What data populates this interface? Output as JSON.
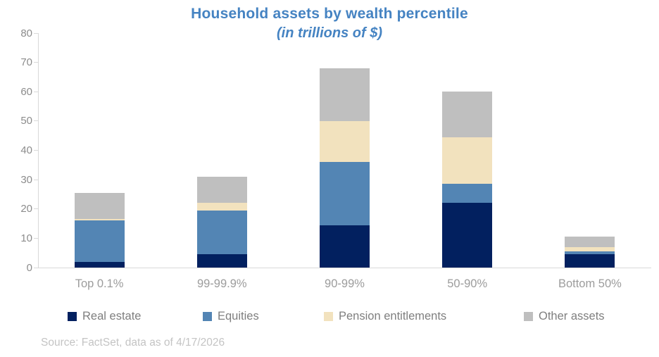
{
  "header": {
    "title": "Household assets by wealth percentile",
    "subtitle": "(in trillions of $)"
  },
  "footer": {
    "source": "Source: FactSet, data as of 4/17/2026"
  },
  "colors": {
    "title_accent": "#4583C2",
    "axis_line": "#D9D9D9",
    "real_estate": "#02205F",
    "equities": "#5385B4",
    "pension_entitlements": "#F2E2BE",
    "other_assets": "#BFBFBF"
  },
  "chart_data": {
    "type": "bar",
    "stacked": true,
    "title": "Household assets by wealth percentile",
    "subtitle": "(in trillions of $)",
    "xlabel": "",
    "ylabel": "",
    "ylim": [
      0,
      80
    ],
    "yticks": [
      0,
      10,
      20,
      30,
      40,
      50,
      60,
      70,
      80
    ],
    "grid": false,
    "legend_position": "bottom",
    "categories": [
      "Top 0.1%",
      "99-99.9%",
      "90-99%",
      "50-90%",
      "Bottom 50%"
    ],
    "series": [
      {
        "name": "Real estate",
        "color": "#02205F",
        "values": [
          2.0,
          4.5,
          14.5,
          22.0,
          4.5
        ]
      },
      {
        "name": "Equities",
        "color": "#5385B4",
        "values": [
          14.0,
          15.0,
          21.5,
          6.5,
          1.0
        ]
      },
      {
        "name": "Pension entitlements",
        "color": "#F2E2BE",
        "values": [
          0.5,
          2.5,
          14.0,
          16.0,
          1.5
        ]
      },
      {
        "name": "Other assets",
        "color": "#BFBFBF",
        "values": [
          9.0,
          9.0,
          18.0,
          15.5,
          3.5
        ]
      }
    ],
    "totals": [
      25.5,
      31.0,
      68.0,
      60.0,
      10.5
    ]
  }
}
